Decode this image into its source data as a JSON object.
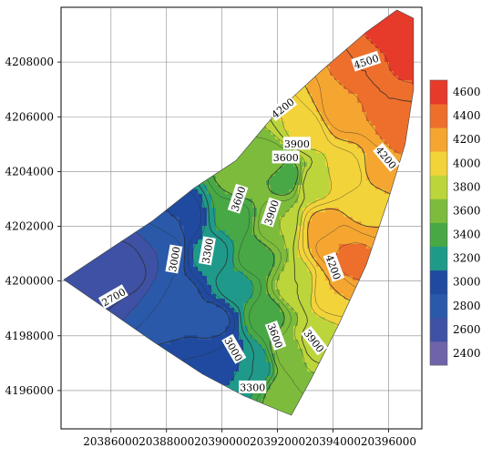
{
  "chart_data": {
    "type": "heatmap",
    "title": "",
    "xlabel": "",
    "ylabel": "",
    "xlim": [
      20384200,
      20397200
    ],
    "ylim": [
      4194600,
      4210000
    ],
    "x_ticks": [
      20386000,
      20388000,
      20390000,
      20392000,
      20394000,
      20396000
    ],
    "x_tick_labels": [
      "20386000",
      "20388000",
      "20390000",
      "20392000",
      "20394000",
      "20396000"
    ],
    "y_ticks": [
      4196000,
      4198000,
      4200000,
      4202000,
      4204000,
      4206000,
      4208000
    ],
    "y_tick_labels": [
      "4196000",
      "4198000",
      "4200000",
      "4202000",
      "4204000",
      "4206000",
      "4208000"
    ],
    "grid": true,
    "colorbar": {
      "min": 2400,
      "max": 4800,
      "levels": [
        2400,
        2600,
        2800,
        3000,
        3200,
        3400,
        3600,
        3800,
        4000,
        4200,
        4400,
        4600
      ],
      "labels": [
        "2400",
        "2600",
        "2800",
        "3000",
        "3200",
        "3400",
        "3600",
        "3800",
        "4000",
        "4200",
        "4400",
        "4600"
      ],
      "colors": [
        "#6f63a9",
        "#3e51a4",
        "#2a59aa",
        "#1f4aa0",
        "#1f9a8a",
        "#48a846",
        "#7cbb3c",
        "#bcd53b",
        "#f2d33a",
        "#f5a631",
        "#ee6f2c",
        "#e63a2b"
      ],
      "placement": "right"
    },
    "region_polygon": [
      [
        20384300,
        4200050
      ],
      [
        20386000,
        4201200
      ],
      [
        20387500,
        4202200
      ],
      [
        20389000,
        4203400
      ],
      [
        20390500,
        4204400
      ],
      [
        20392000,
        4206200
      ],
      [
        20393600,
        4207700
      ],
      [
        20395200,
        4209100
      ],
      [
        20396300,
        4209900
      ],
      [
        20396900,
        4209600
      ],
      [
        20396900,
        4207000
      ],
      [
        20396600,
        4205000
      ],
      [
        20396000,
        4203000
      ],
      [
        20395200,
        4200600
      ],
      [
        20394200,
        4198400
      ],
      [
        20393200,
        4196400
      ],
      [
        20392500,
        4195100
      ],
      [
        20392000,
        4195300
      ],
      [
        20390800,
        4195800
      ],
      [
        20389300,
        4196600
      ],
      [
        20387500,
        4197800
      ],
      [
        20385800,
        4199000
      ]
    ],
    "field_nodes": [
      {
        "x": 20385200,
        "y": 4200100,
        "value": 2650
      },
      {
        "x": 20386600,
        "y": 4200500,
        "value": 2650
      },
      {
        "x": 20387800,
        "y": 4201100,
        "value": 2800
      },
      {
        "x": 20388500,
        "y": 4202300,
        "value": 3000
      },
      {
        "x": 20388400,
        "y": 4199300,
        "value": 2900
      },
      {
        "x": 20389700,
        "y": 4198600,
        "value": 2950
      },
      {
        "x": 20390200,
        "y": 4197200,
        "value": 3100
      },
      {
        "x": 20389600,
        "y": 4201000,
        "value": 3250
      },
      {
        "x": 20390400,
        "y": 4202300,
        "value": 3450
      },
      {
        "x": 20390500,
        "y": 4199800,
        "value": 3350
      },
      {
        "x": 20391100,
        "y": 4196900,
        "value": 3300
      },
      {
        "x": 20391600,
        "y": 4198700,
        "value": 3550
      },
      {
        "x": 20391200,
        "y": 4200800,
        "value": 3550
      },
      {
        "x": 20390800,
        "y": 4203800,
        "value": 3700
      },
      {
        "x": 20391800,
        "y": 4204300,
        "value": 3650
      },
      {
        "x": 20392000,
        "y": 4202100,
        "value": 3800
      },
      {
        "x": 20392300,
        "y": 4203800,
        "value": 3500
      },
      {
        "x": 20392500,
        "y": 4197400,
        "value": 3750
      },
      {
        "x": 20392700,
        "y": 4199800,
        "value": 3900
      },
      {
        "x": 20392400,
        "y": 4195900,
        "value": 3700
      },
      {
        "x": 20393300,
        "y": 4197700,
        "value": 3950
      },
      {
        "x": 20393000,
        "y": 4205500,
        "value": 4050
      },
      {
        "x": 20393300,
        "y": 4203600,
        "value": 3950
      },
      {
        "x": 20393700,
        "y": 4202000,
        "value": 4250
      },
      {
        "x": 20394100,
        "y": 4201400,
        "value": 4400
      },
      {
        "x": 20393900,
        "y": 4199700,
        "value": 4200
      },
      {
        "x": 20394700,
        "y": 4200700,
        "value": 4450
      },
      {
        "x": 20394500,
        "y": 4203900,
        "value": 4050
      },
      {
        "x": 20395100,
        "y": 4202800,
        "value": 4150
      },
      {
        "x": 20395700,
        "y": 4204100,
        "value": 4250
      },
      {
        "x": 20394300,
        "y": 4206200,
        "value": 4350
      },
      {
        "x": 20395300,
        "y": 4207600,
        "value": 4500
      },
      {
        "x": 20396000,
        "y": 4206600,
        "value": 4500
      },
      {
        "x": 20396400,
        "y": 4209100,
        "value": 4700
      },
      {
        "x": 20396600,
        "y": 4208000,
        "value": 4650
      },
      {
        "x": 20396500,
        "y": 4205300,
        "value": 4450
      }
    ],
    "contour_labels": [
      {
        "text": "4500",
        "x": 20395200,
        "y": 4208000,
        "rotate": -18
      },
      {
        "text": "4200",
        "x": 20392200,
        "y": 4206300,
        "rotate": -38
      },
      {
        "text": "4200",
        "x": 20395900,
        "y": 4204500,
        "rotate": 50
      },
      {
        "text": "3900",
        "x": 20392700,
        "y": 4205000,
        "rotate": 0
      },
      {
        "text": "3600",
        "x": 20392300,
        "y": 4204500,
        "rotate": 0
      },
      {
        "text": "3600",
        "x": 20390600,
        "y": 4203000,
        "rotate": -72
      },
      {
        "text": "3900",
        "x": 20391800,
        "y": 4202500,
        "rotate": -72
      },
      {
        "text": "4200",
        "x": 20394000,
        "y": 4200500,
        "rotate": 70
      },
      {
        "text": "3000",
        "x": 20388300,
        "y": 4200800,
        "rotate": -80
      },
      {
        "text": "3300",
        "x": 20389500,
        "y": 4201100,
        "rotate": -80
      },
      {
        "text": "2700",
        "x": 20386100,
        "y": 4199400,
        "rotate": -30
      },
      {
        "text": "3600",
        "x": 20391900,
        "y": 4198000,
        "rotate": 70
      },
      {
        "text": "3900",
        "x": 20393300,
        "y": 4197800,
        "rotate": 52
      },
      {
        "text": "3000",
        "x": 20390400,
        "y": 4197500,
        "rotate": 60
      },
      {
        "text": "3300",
        "x": 20391100,
        "y": 4196100,
        "rotate": 0
      }
    ]
  }
}
